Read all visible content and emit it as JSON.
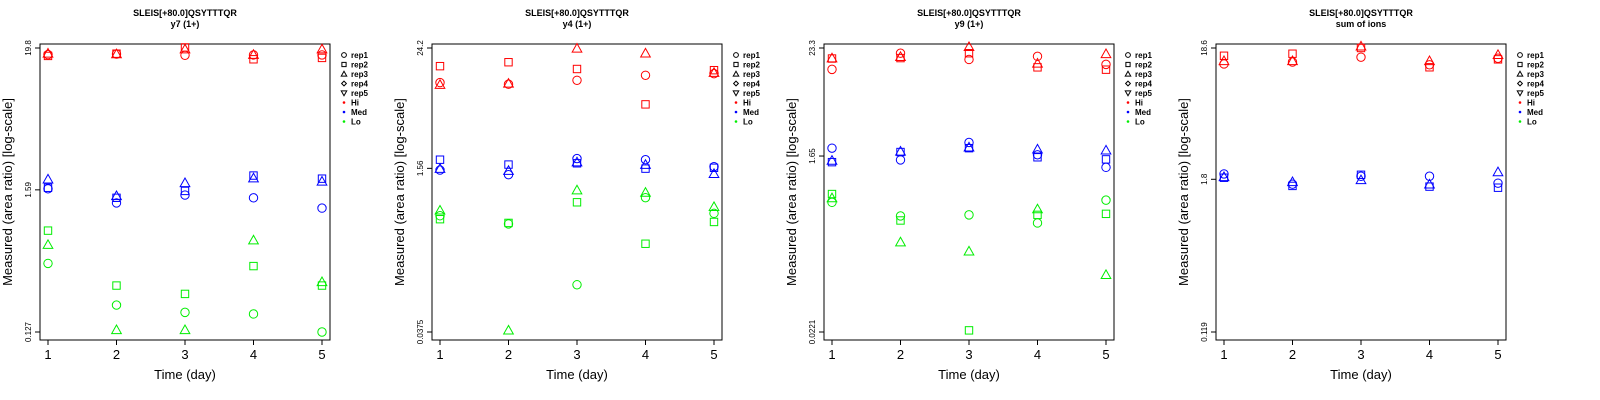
{
  "shape_legend": [
    "rep1",
    "rep2",
    "rep3",
    "rep4",
    "rep5"
  ],
  "shape_names": [
    "circle",
    "square",
    "triangle-up",
    "diamond",
    "triangle-down"
  ],
  "color_legend": [
    {
      "name": "Hi",
      "color": "#ff0000"
    },
    {
      "name": "Med",
      "color": "#0000ff"
    },
    {
      "name": "Lo",
      "color": "#00ee00"
    }
  ],
  "chart_data": [
    {
      "type": "scatter",
      "title": "SLEIS[+80.0]QSYTTTQR",
      "subtitle": "y7 (1+)",
      "xlabel": "Time (day)",
      "ylabel": "Measured (area ratio) [log-scale]",
      "x_ticks": [
        1,
        2,
        3,
        4,
        5
      ],
      "y_scale": "log",
      "y_ticks": [
        0.127,
        1.59,
        19.8
      ],
      "y_tick_labels": [
        "0.127",
        "1.59",
        "19.8"
      ],
      "xlim": [
        1,
        5
      ],
      "ylim": [
        0.127,
        19.8
      ],
      "points": [
        {
          "group": "Hi",
          "rep": 1,
          "x": 1,
          "y": 17.6
        },
        {
          "group": "Hi",
          "rep": 2,
          "x": 1,
          "y": 17.2
        },
        {
          "group": "Hi",
          "rep": 3,
          "x": 1,
          "y": 18.0
        },
        {
          "group": "Hi",
          "rep": 1,
          "x": 2,
          "y": 17.8
        },
        {
          "group": "Hi",
          "rep": 2,
          "x": 2,
          "y": 17.9
        },
        {
          "group": "Hi",
          "rep": 3,
          "x": 2,
          "y": 17.8
        },
        {
          "group": "Hi",
          "rep": 1,
          "x": 3,
          "y": 17.4
        },
        {
          "group": "Hi",
          "rep": 2,
          "x": 3,
          "y": 20.0
        },
        {
          "group": "Hi",
          "rep": 3,
          "x": 3,
          "y": 19.4
        },
        {
          "group": "Hi",
          "rep": 1,
          "x": 4,
          "y": 17.5
        },
        {
          "group": "Hi",
          "rep": 2,
          "x": 4,
          "y": 16.2
        },
        {
          "group": "Hi",
          "rep": 3,
          "x": 4,
          "y": 17.6
        },
        {
          "group": "Hi",
          "rep": 1,
          "x": 5,
          "y": 17.5
        },
        {
          "group": "Hi",
          "rep": 2,
          "x": 5,
          "y": 16.6
        },
        {
          "group": "Hi",
          "rep": 3,
          "x": 5,
          "y": 19.4
        },
        {
          "group": "Med",
          "rep": 1,
          "x": 1,
          "y": 1.62
        },
        {
          "group": "Med",
          "rep": 2,
          "x": 1,
          "y": 1.65
        },
        {
          "group": "Med",
          "rep": 3,
          "x": 1,
          "y": 1.92
        },
        {
          "group": "Med",
          "rep": 1,
          "x": 2,
          "y": 1.26
        },
        {
          "group": "Med",
          "rep": 2,
          "x": 2,
          "y": 1.38
        },
        {
          "group": "Med",
          "rep": 3,
          "x": 2,
          "y": 1.43
        },
        {
          "group": "Med",
          "rep": 1,
          "x": 3,
          "y": 1.45
        },
        {
          "group": "Med",
          "rep": 2,
          "x": 3,
          "y": 1.56
        },
        {
          "group": "Med",
          "rep": 3,
          "x": 3,
          "y": 1.8
        },
        {
          "group": "Med",
          "rep": 1,
          "x": 4,
          "y": 1.38
        },
        {
          "group": "Med",
          "rep": 2,
          "x": 4,
          "y": 2.05
        },
        {
          "group": "Med",
          "rep": 3,
          "x": 4,
          "y": 1.96
        },
        {
          "group": "Med",
          "rep": 1,
          "x": 5,
          "y": 1.15
        },
        {
          "group": "Med",
          "rep": 2,
          "x": 5,
          "y": 1.94
        },
        {
          "group": "Med",
          "rep": 3,
          "x": 5,
          "y": 1.85
        },
        {
          "group": "Lo",
          "rep": 1,
          "x": 1,
          "y": 0.43
        },
        {
          "group": "Lo",
          "rep": 2,
          "x": 1,
          "y": 0.77
        },
        {
          "group": "Lo",
          "rep": 3,
          "x": 1,
          "y": 0.6
        },
        {
          "group": "Lo",
          "rep": 1,
          "x": 2,
          "y": 0.205
        },
        {
          "group": "Lo",
          "rep": 2,
          "x": 2,
          "y": 0.29
        },
        {
          "group": "Lo",
          "rep": 3,
          "x": 2,
          "y": 0.132
        },
        {
          "group": "Lo",
          "rep": 1,
          "x": 3,
          "y": 0.18
        },
        {
          "group": "Lo",
          "rep": 2,
          "x": 3,
          "y": 0.25
        },
        {
          "group": "Lo",
          "rep": 3,
          "x": 3,
          "y": 0.132
        },
        {
          "group": "Lo",
          "rep": 1,
          "x": 4,
          "y": 0.175
        },
        {
          "group": "Lo",
          "rep": 2,
          "x": 4,
          "y": 0.41
        },
        {
          "group": "Lo",
          "rep": 3,
          "x": 4,
          "y": 0.65
        },
        {
          "group": "Lo",
          "rep": 1,
          "x": 5,
          "y": 0.127
        },
        {
          "group": "Lo",
          "rep": 2,
          "x": 5,
          "y": 0.29
        },
        {
          "group": "Lo",
          "rep": 3,
          "x": 5,
          "y": 0.31
        }
      ]
    },
    {
      "type": "scatter",
      "title": "SLEIS[+80.0]QSYTTTQR",
      "subtitle": "y4 (1+)",
      "xlabel": "Time (day)",
      "ylabel": "Measured (area ratio) [log-scale]",
      "x_ticks": [
        1,
        2,
        3,
        4,
        5
      ],
      "y_scale": "log",
      "y_ticks": [
        0.0375,
        1.56,
        24.2
      ],
      "y_tick_labels": [
        "0.0375",
        "1.56",
        "24.2"
      ],
      "xlim": [
        1,
        5
      ],
      "ylim": [
        0.0375,
        24.2
      ],
      "points": [
        {
          "group": "Hi",
          "rep": 1,
          "x": 1,
          "y": 11.0
        },
        {
          "group": "Hi",
          "rep": 2,
          "x": 1,
          "y": 16.0
        },
        {
          "group": "Hi",
          "rep": 3,
          "x": 1,
          "y": 10.5
        },
        {
          "group": "Hi",
          "rep": 1,
          "x": 2,
          "y": 10.6
        },
        {
          "group": "Hi",
          "rep": 2,
          "x": 2,
          "y": 17.5
        },
        {
          "group": "Hi",
          "rep": 3,
          "x": 2,
          "y": 10.8
        },
        {
          "group": "Hi",
          "rep": 1,
          "x": 3,
          "y": 11.6
        },
        {
          "group": "Hi",
          "rep": 2,
          "x": 3,
          "y": 15.0
        },
        {
          "group": "Hi",
          "rep": 3,
          "x": 3,
          "y": 24.0
        },
        {
          "group": "Hi",
          "rep": 1,
          "x": 4,
          "y": 13.0
        },
        {
          "group": "Hi",
          "rep": 2,
          "x": 4,
          "y": 6.7
        },
        {
          "group": "Hi",
          "rep": 3,
          "x": 4,
          "y": 21.5
        },
        {
          "group": "Hi",
          "rep": 1,
          "x": 5,
          "y": 13.5
        },
        {
          "group": "Hi",
          "rep": 2,
          "x": 5,
          "y": 14.6
        },
        {
          "group": "Hi",
          "rep": 3,
          "x": 5,
          "y": 13.8
        },
        {
          "group": "Med",
          "rep": 1,
          "x": 1,
          "y": 1.5
        },
        {
          "group": "Med",
          "rep": 2,
          "x": 1,
          "y": 1.9
        },
        {
          "group": "Med",
          "rep": 3,
          "x": 1,
          "y": 1.55
        },
        {
          "group": "Med",
          "rep": 1,
          "x": 2,
          "y": 1.35
        },
        {
          "group": "Med",
          "rep": 2,
          "x": 2,
          "y": 1.7
        },
        {
          "group": "Med",
          "rep": 3,
          "x": 2,
          "y": 1.48
        },
        {
          "group": "Med",
          "rep": 1,
          "x": 3,
          "y": 1.95
        },
        {
          "group": "Med",
          "rep": 2,
          "x": 3,
          "y": 1.75
        },
        {
          "group": "Med",
          "rep": 3,
          "x": 3,
          "y": 1.8
        },
        {
          "group": "Med",
          "rep": 1,
          "x": 4,
          "y": 1.9
        },
        {
          "group": "Med",
          "rep": 2,
          "x": 4,
          "y": 1.55
        },
        {
          "group": "Med",
          "rep": 3,
          "x": 4,
          "y": 1.7
        },
        {
          "group": "Med",
          "rep": 1,
          "x": 5,
          "y": 1.62
        },
        {
          "group": "Med",
          "rep": 2,
          "x": 5,
          "y": 1.58
        },
        {
          "group": "Med",
          "rep": 3,
          "x": 5,
          "y": 1.38
        },
        {
          "group": "Lo",
          "rep": 1,
          "x": 1,
          "y": 0.53
        },
        {
          "group": "Lo",
          "rep": 2,
          "x": 1,
          "y": 0.49
        },
        {
          "group": "Lo",
          "rep": 3,
          "x": 1,
          "y": 0.6
        },
        {
          "group": "Lo",
          "rep": 1,
          "x": 2,
          "y": 0.44
        },
        {
          "group": "Lo",
          "rep": 2,
          "x": 2,
          "y": 0.45
        },
        {
          "group": "Lo",
          "rep": 3,
          "x": 2,
          "y": 0.039
        },
        {
          "group": "Lo",
          "rep": 1,
          "x": 3,
          "y": 0.11
        },
        {
          "group": "Lo",
          "rep": 2,
          "x": 3,
          "y": 0.72
        },
        {
          "group": "Lo",
          "rep": 3,
          "x": 3,
          "y": 0.95
        },
        {
          "group": "Lo",
          "rep": 1,
          "x": 4,
          "y": 0.8
        },
        {
          "group": "Lo",
          "rep": 2,
          "x": 4,
          "y": 0.28
        },
        {
          "group": "Lo",
          "rep": 3,
          "x": 4,
          "y": 0.9
        },
        {
          "group": "Lo",
          "rep": 1,
          "x": 5,
          "y": 0.56
        },
        {
          "group": "Lo",
          "rep": 2,
          "x": 5,
          "y": 0.46
        },
        {
          "group": "Lo",
          "rep": 3,
          "x": 5,
          "y": 0.65
        }
      ]
    },
    {
      "type": "scatter",
      "title": "SLEIS[+80.0]QSYTTTQR",
      "subtitle": "y9 (1+)",
      "xlabel": "Time (day)",
      "ylabel": "Measured (area ratio) [log-scale]",
      "x_ticks": [
        1,
        2,
        3,
        4,
        5
      ],
      "y_scale": "log",
      "y_ticks": [
        0.0221,
        1.65,
        23.3
      ],
      "y_tick_labels": [
        "0.0221",
        "1.65",
        "23.3"
      ],
      "xlim": [
        1,
        5
      ],
      "ylim": [
        0.0221,
        23.3
      ],
      "points": [
        {
          "group": "Hi",
          "rep": 1,
          "x": 1,
          "y": 13.8
        },
        {
          "group": "Hi",
          "rep": 2,
          "x": 1,
          "y": 18.0
        },
        {
          "group": "Hi",
          "rep": 3,
          "x": 1,
          "y": 18.2
        },
        {
          "group": "Hi",
          "rep": 1,
          "x": 2,
          "y": 20.5
        },
        {
          "group": "Hi",
          "rep": 2,
          "x": 2,
          "y": 18.2
        },
        {
          "group": "Hi",
          "rep": 3,
          "x": 2,
          "y": 18.8
        },
        {
          "group": "Hi",
          "rep": 1,
          "x": 3,
          "y": 17.6
        },
        {
          "group": "Hi",
          "rep": 2,
          "x": 3,
          "y": 20.5
        },
        {
          "group": "Hi",
          "rep": 3,
          "x": 3,
          "y": 24.0
        },
        {
          "group": "Hi",
          "rep": 1,
          "x": 4,
          "y": 19.0
        },
        {
          "group": "Hi",
          "rep": 2,
          "x": 4,
          "y": 14.5
        },
        {
          "group": "Hi",
          "rep": 3,
          "x": 4,
          "y": 16.0
        },
        {
          "group": "Hi",
          "rep": 1,
          "x": 5,
          "y": 15.6
        },
        {
          "group": "Hi",
          "rep": 2,
          "x": 5,
          "y": 13.7
        },
        {
          "group": "Hi",
          "rep": 3,
          "x": 5,
          "y": 20.2
        },
        {
          "group": "Med",
          "rep": 1,
          "x": 1,
          "y": 2.0
        },
        {
          "group": "Med",
          "rep": 2,
          "x": 1,
          "y": 1.42
        },
        {
          "group": "Med",
          "rep": 3,
          "x": 1,
          "y": 1.48
        },
        {
          "group": "Med",
          "rep": 1,
          "x": 2,
          "y": 1.5
        },
        {
          "group": "Med",
          "rep": 2,
          "x": 2,
          "y": 1.82
        },
        {
          "group": "Med",
          "rep": 3,
          "x": 2,
          "y": 1.85
        },
        {
          "group": "Med",
          "rep": 1,
          "x": 3,
          "y": 2.3
        },
        {
          "group": "Med",
          "rep": 2,
          "x": 3,
          "y": 2.0
        },
        {
          "group": "Med",
          "rep": 3,
          "x": 3,
          "y": 2.05
        },
        {
          "group": "Med",
          "rep": 1,
          "x": 4,
          "y": 1.7
        },
        {
          "group": "Med",
          "rep": 2,
          "x": 4,
          "y": 1.6
        },
        {
          "group": "Med",
          "rep": 3,
          "x": 4,
          "y": 1.95
        },
        {
          "group": "Med",
          "rep": 1,
          "x": 5,
          "y": 1.25
        },
        {
          "group": "Med",
          "rep": 2,
          "x": 5,
          "y": 1.52
        },
        {
          "group": "Med",
          "rep": 3,
          "x": 5,
          "y": 1.9
        },
        {
          "group": "Lo",
          "rep": 1,
          "x": 1,
          "y": 0.53
        },
        {
          "group": "Lo",
          "rep": 2,
          "x": 1,
          "y": 0.65
        },
        {
          "group": "Lo",
          "rep": 3,
          "x": 1,
          "y": 0.59
        },
        {
          "group": "Lo",
          "rep": 1,
          "x": 2,
          "y": 0.38
        },
        {
          "group": "Lo",
          "rep": 2,
          "x": 2,
          "y": 0.34
        },
        {
          "group": "Lo",
          "rep": 3,
          "x": 2,
          "y": 0.2
        },
        {
          "group": "Lo",
          "rep": 1,
          "x": 3,
          "y": 0.39
        },
        {
          "group": "Lo",
          "rep": 2,
          "x": 3,
          "y": 0.023
        },
        {
          "group": "Lo",
          "rep": 3,
          "x": 3,
          "y": 0.16
        },
        {
          "group": "Lo",
          "rep": 1,
          "x": 4,
          "y": 0.32
        },
        {
          "group": "Lo",
          "rep": 2,
          "x": 4,
          "y": 0.39
        },
        {
          "group": "Lo",
          "rep": 3,
          "x": 4,
          "y": 0.45
        },
        {
          "group": "Lo",
          "rep": 1,
          "x": 5,
          "y": 0.56
        },
        {
          "group": "Lo",
          "rep": 2,
          "x": 5,
          "y": 0.4
        },
        {
          "group": "Lo",
          "rep": 3,
          "x": 5,
          "y": 0.09
        }
      ]
    },
    {
      "type": "scatter",
      "title": "SLEIS[+80.0]QSYTTTQR",
      "subtitle": "sum of ions",
      "xlabel": "Time (day)",
      "ylabel": "Measured (area ratio) [log-scale]",
      "x_ticks": [
        1,
        2,
        3,
        4,
        5
      ],
      "y_scale": "log",
      "y_ticks": [
        0.119,
        1.8,
        18.6
      ],
      "y_tick_labels": [
        "0.119",
        "1.8",
        "18.6"
      ],
      "xlim": [
        1,
        5
      ],
      "ylim": [
        0.119,
        18.6
      ],
      "points": [
        {
          "group": "Hi",
          "rep": 1,
          "x": 1,
          "y": 14.0
        },
        {
          "group": "Hi",
          "rep": 2,
          "x": 1,
          "y": 16.2
        },
        {
          "group": "Hi",
          "rep": 3,
          "x": 1,
          "y": 14.8
        },
        {
          "group": "Hi",
          "rep": 1,
          "x": 2,
          "y": 14.5
        },
        {
          "group": "Hi",
          "rep": 2,
          "x": 2,
          "y": 16.8
        },
        {
          "group": "Hi",
          "rep": 3,
          "x": 2,
          "y": 14.8
        },
        {
          "group": "Hi",
          "rep": 1,
          "x": 3,
          "y": 15.8
        },
        {
          "group": "Hi",
          "rep": 2,
          "x": 3,
          "y": 18.6
        },
        {
          "group": "Hi",
          "rep": 3,
          "x": 3,
          "y": 19.2
        },
        {
          "group": "Hi",
          "rep": 1,
          "x": 4,
          "y": 13.8
        },
        {
          "group": "Hi",
          "rep": 2,
          "x": 4,
          "y": 13.2
        },
        {
          "group": "Hi",
          "rep": 3,
          "x": 4,
          "y": 14.8
        },
        {
          "group": "Hi",
          "rep": 1,
          "x": 5,
          "y": 15.5
        },
        {
          "group": "Hi",
          "rep": 2,
          "x": 5,
          "y": 15.2
        },
        {
          "group": "Hi",
          "rep": 3,
          "x": 5,
          "y": 16.5
        },
        {
          "group": "Med",
          "rep": 1,
          "x": 1,
          "y": 1.98
        },
        {
          "group": "Med",
          "rep": 2,
          "x": 1,
          "y": 1.85
        },
        {
          "group": "Med",
          "rep": 3,
          "x": 1,
          "y": 1.88
        },
        {
          "group": "Med",
          "rep": 1,
          "x": 2,
          "y": 1.65
        },
        {
          "group": "Med",
          "rep": 2,
          "x": 2,
          "y": 1.6
        },
        {
          "group": "Med",
          "rep": 3,
          "x": 2,
          "y": 1.72
        },
        {
          "group": "Med",
          "rep": 1,
          "x": 3,
          "y": 1.9
        },
        {
          "group": "Med",
          "rep": 2,
          "x": 3,
          "y": 1.95
        },
        {
          "group": "Med",
          "rep": 3,
          "x": 3,
          "y": 1.78
        },
        {
          "group": "Med",
          "rep": 1,
          "x": 4,
          "y": 1.9
        },
        {
          "group": "Med",
          "rep": 2,
          "x": 4,
          "y": 1.58
        },
        {
          "group": "Med",
          "rep": 3,
          "x": 4,
          "y": 1.65
        },
        {
          "group": "Med",
          "rep": 1,
          "x": 5,
          "y": 1.68
        },
        {
          "group": "Med",
          "rep": 2,
          "x": 5,
          "y": 1.55
        },
        {
          "group": "Med",
          "rep": 3,
          "x": 5,
          "y": 2.05
        }
      ]
    }
  ]
}
